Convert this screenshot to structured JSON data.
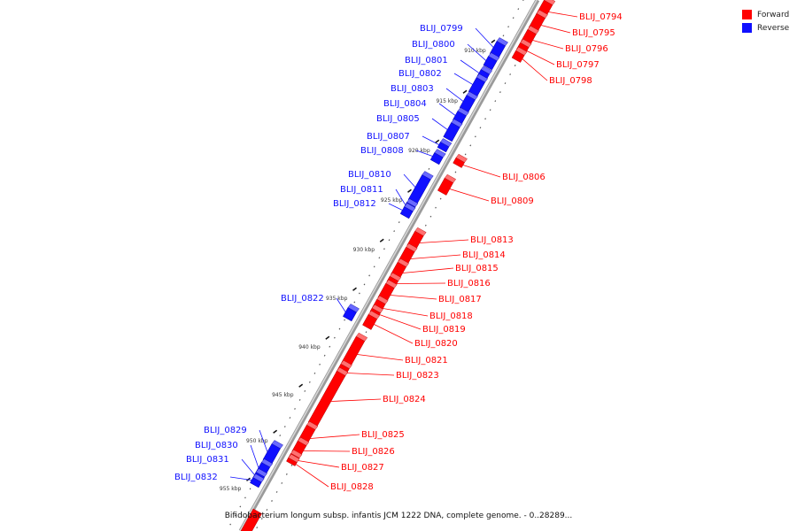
{
  "legend": {
    "items": [
      {
        "label": "Forward",
        "color": "#ff0000"
      },
      {
        "label": "Reverse",
        "color": "#1010ff"
      }
    ]
  },
  "caption": "Bifidobacterium longum subsp. infantis JCM 1222 DNA, complete genome. - 0..28289...",
  "ticks": [
    "910 kbp",
    "915 kbp",
    "920 kbp",
    "925 kbp",
    "930 kbp",
    "935 kbp",
    "940 kbp",
    "945 kbp",
    "950 kbp",
    "955 kbp"
  ],
  "genes": [
    {
      "name": "BLIJ_0794",
      "strand": "forward"
    },
    {
      "name": "BLIJ_0795",
      "strand": "forward"
    },
    {
      "name": "BLIJ_0796",
      "strand": "forward"
    },
    {
      "name": "BLIJ_0797",
      "strand": "forward"
    },
    {
      "name": "BLIJ_0798",
      "strand": "forward"
    },
    {
      "name": "BLIJ_0799",
      "strand": "reverse"
    },
    {
      "name": "BLIJ_0800",
      "strand": "reverse"
    },
    {
      "name": "BLIJ_0801",
      "strand": "reverse"
    },
    {
      "name": "BLIJ_0802",
      "strand": "reverse"
    },
    {
      "name": "BLIJ_0803",
      "strand": "reverse"
    },
    {
      "name": "BLIJ_0804",
      "strand": "reverse"
    },
    {
      "name": "BLIJ_0805",
      "strand": "reverse"
    },
    {
      "name": "BLIJ_0806",
      "strand": "forward"
    },
    {
      "name": "BLIJ_0807",
      "strand": "reverse"
    },
    {
      "name": "BLIJ_0808",
      "strand": "reverse"
    },
    {
      "name": "BLIJ_0809",
      "strand": "forward"
    },
    {
      "name": "BLIJ_0810",
      "strand": "reverse"
    },
    {
      "name": "BLIJ_0811",
      "strand": "reverse"
    },
    {
      "name": "BLIJ_0812",
      "strand": "reverse"
    },
    {
      "name": "BLIJ_0813",
      "strand": "forward"
    },
    {
      "name": "BLIJ_0814",
      "strand": "forward"
    },
    {
      "name": "BLIJ_0815",
      "strand": "forward"
    },
    {
      "name": "BLIJ_0816",
      "strand": "forward"
    },
    {
      "name": "BLIJ_0817",
      "strand": "forward"
    },
    {
      "name": "BLIJ_0818",
      "strand": "forward"
    },
    {
      "name": "BLIJ_0819",
      "strand": "forward"
    },
    {
      "name": "BLIJ_0820",
      "strand": "forward"
    },
    {
      "name": "BLIJ_0821",
      "strand": "forward"
    },
    {
      "name": "BLIJ_0822",
      "strand": "reverse"
    },
    {
      "name": "BLIJ_0823",
      "strand": "forward"
    },
    {
      "name": "BLIJ_0824",
      "strand": "forward"
    },
    {
      "name": "BLIJ_0825",
      "strand": "forward"
    },
    {
      "name": "BLIJ_0826",
      "strand": "forward"
    },
    {
      "name": "BLIJ_0827",
      "strand": "forward"
    },
    {
      "name": "BLIJ_0828",
      "strand": "forward"
    },
    {
      "name": "BLIJ_0829",
      "strand": "reverse"
    },
    {
      "name": "BLIJ_0830",
      "strand": "reverse"
    },
    {
      "name": "BLIJ_0831",
      "strand": "reverse"
    },
    {
      "name": "BLIJ_0832",
      "strand": "reverse"
    }
  ]
}
